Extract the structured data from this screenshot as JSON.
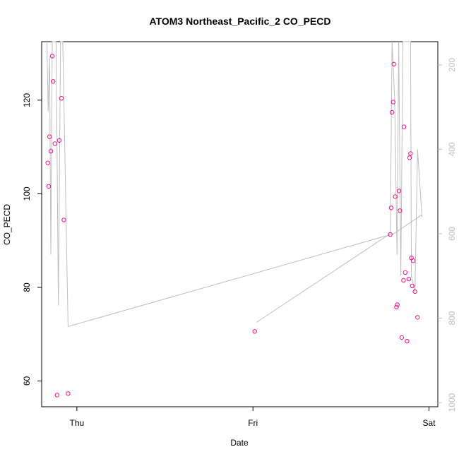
{
  "chart_data": {
    "type": "scatter",
    "title": "ATOM3 Northeast_Pacific_2 CO_PECD",
    "xlabel": "Date",
    "ylabel": "CO_PECD",
    "x_ticks": [
      "Thu",
      "Fri",
      "Sat"
    ],
    "xlim": [
      -0.2,
      2.05
    ],
    "ylim": [
      54.5,
      132.5
    ],
    "y_ticks": [
      60,
      80,
      100,
      120
    ],
    "y2_ticks": [
      200,
      400,
      600,
      800,
      1000
    ],
    "y2lim": [
      1010,
      145
    ],
    "grid": false,
    "colors": {
      "points": "#ee1289",
      "profile": "#bebebe",
      "axis": "#000000",
      "axis2": "#bebebe"
    },
    "series": [
      {
        "values": [
          [
            -0.165,
            106.6
          ],
          [
            -0.16,
            101.6
          ],
          [
            -0.155,
            112.2
          ],
          [
            -0.148,
            109.1
          ],
          [
            -0.14,
            129.4
          ],
          [
            -0.135,
            124.0
          ],
          [
            -0.125,
            110.7
          ],
          [
            -0.112,
            57.0
          ],
          [
            -0.1,
            111.4
          ],
          [
            -0.088,
            120.4
          ],
          [
            -0.074,
            94.4
          ],
          [
            -0.05,
            57.3
          ],
          [
            1.01,
            70.6
          ],
          [
            1.78,
            91.3
          ],
          [
            1.785,
            97.0
          ],
          [
            1.79,
            117.4
          ],
          [
            1.797,
            119.6
          ],
          [
            1.8,
            127.7
          ],
          [
            1.808,
            99.4
          ],
          [
            1.815,
            75.8
          ],
          [
            1.82,
            76.3
          ],
          [
            1.83,
            100.6
          ],
          [
            1.835,
            96.4
          ],
          [
            1.845,
            69.3
          ],
          [
            1.855,
            81.5
          ],
          [
            1.858,
            114.3
          ],
          [
            1.865,
            83.2
          ],
          [
            1.875,
            68.5
          ],
          [
            1.885,
            81.8
          ],
          [
            1.89,
            107.7
          ],
          [
            1.895,
            108.6
          ],
          [
            1.9,
            86.3
          ],
          [
            1.905,
            80.3
          ],
          [
            1.91,
            85.7
          ],
          [
            1.92,
            79.1
          ],
          [
            1.935,
            73.6
          ]
        ]
      }
    ],
    "profile_line": {
      "axis": "right",
      "segments": [
        {
          "values": [
            [
              -0.17,
              130
            ],
            [
              -0.163,
              310
            ],
            [
              -0.155,
              180
            ],
            [
              -0.148,
              650
            ],
            [
              -0.14,
              120
            ],
            [
              -0.118,
              120
            ],
            [
              -0.105,
              770
            ],
            [
              -0.093,
              120
            ],
            [
              -0.08,
              130
            ],
            [
              -0.05,
              820
            ],
            [
              1.8,
              600
            ],
            [
              1.96,
              555
            ]
          ]
        },
        {
          "values": [
            [
              1.02,
              810
            ],
            [
              1.78,
              600
            ],
            [
              1.79,
              120
            ],
            [
              1.805,
              280
            ],
            [
              1.818,
              650
            ],
            [
              1.828,
              120
            ],
            [
              1.84,
              700
            ],
            [
              1.852,
              120
            ],
            [
              1.87,
              120
            ],
            [
              1.885,
              130
            ],
            [
              1.895,
              140
            ],
            [
              1.9,
              700
            ],
            [
              1.92,
              740
            ],
            [
              1.935,
              400
            ],
            [
              1.96,
              560
            ]
          ]
        }
      ]
    }
  }
}
